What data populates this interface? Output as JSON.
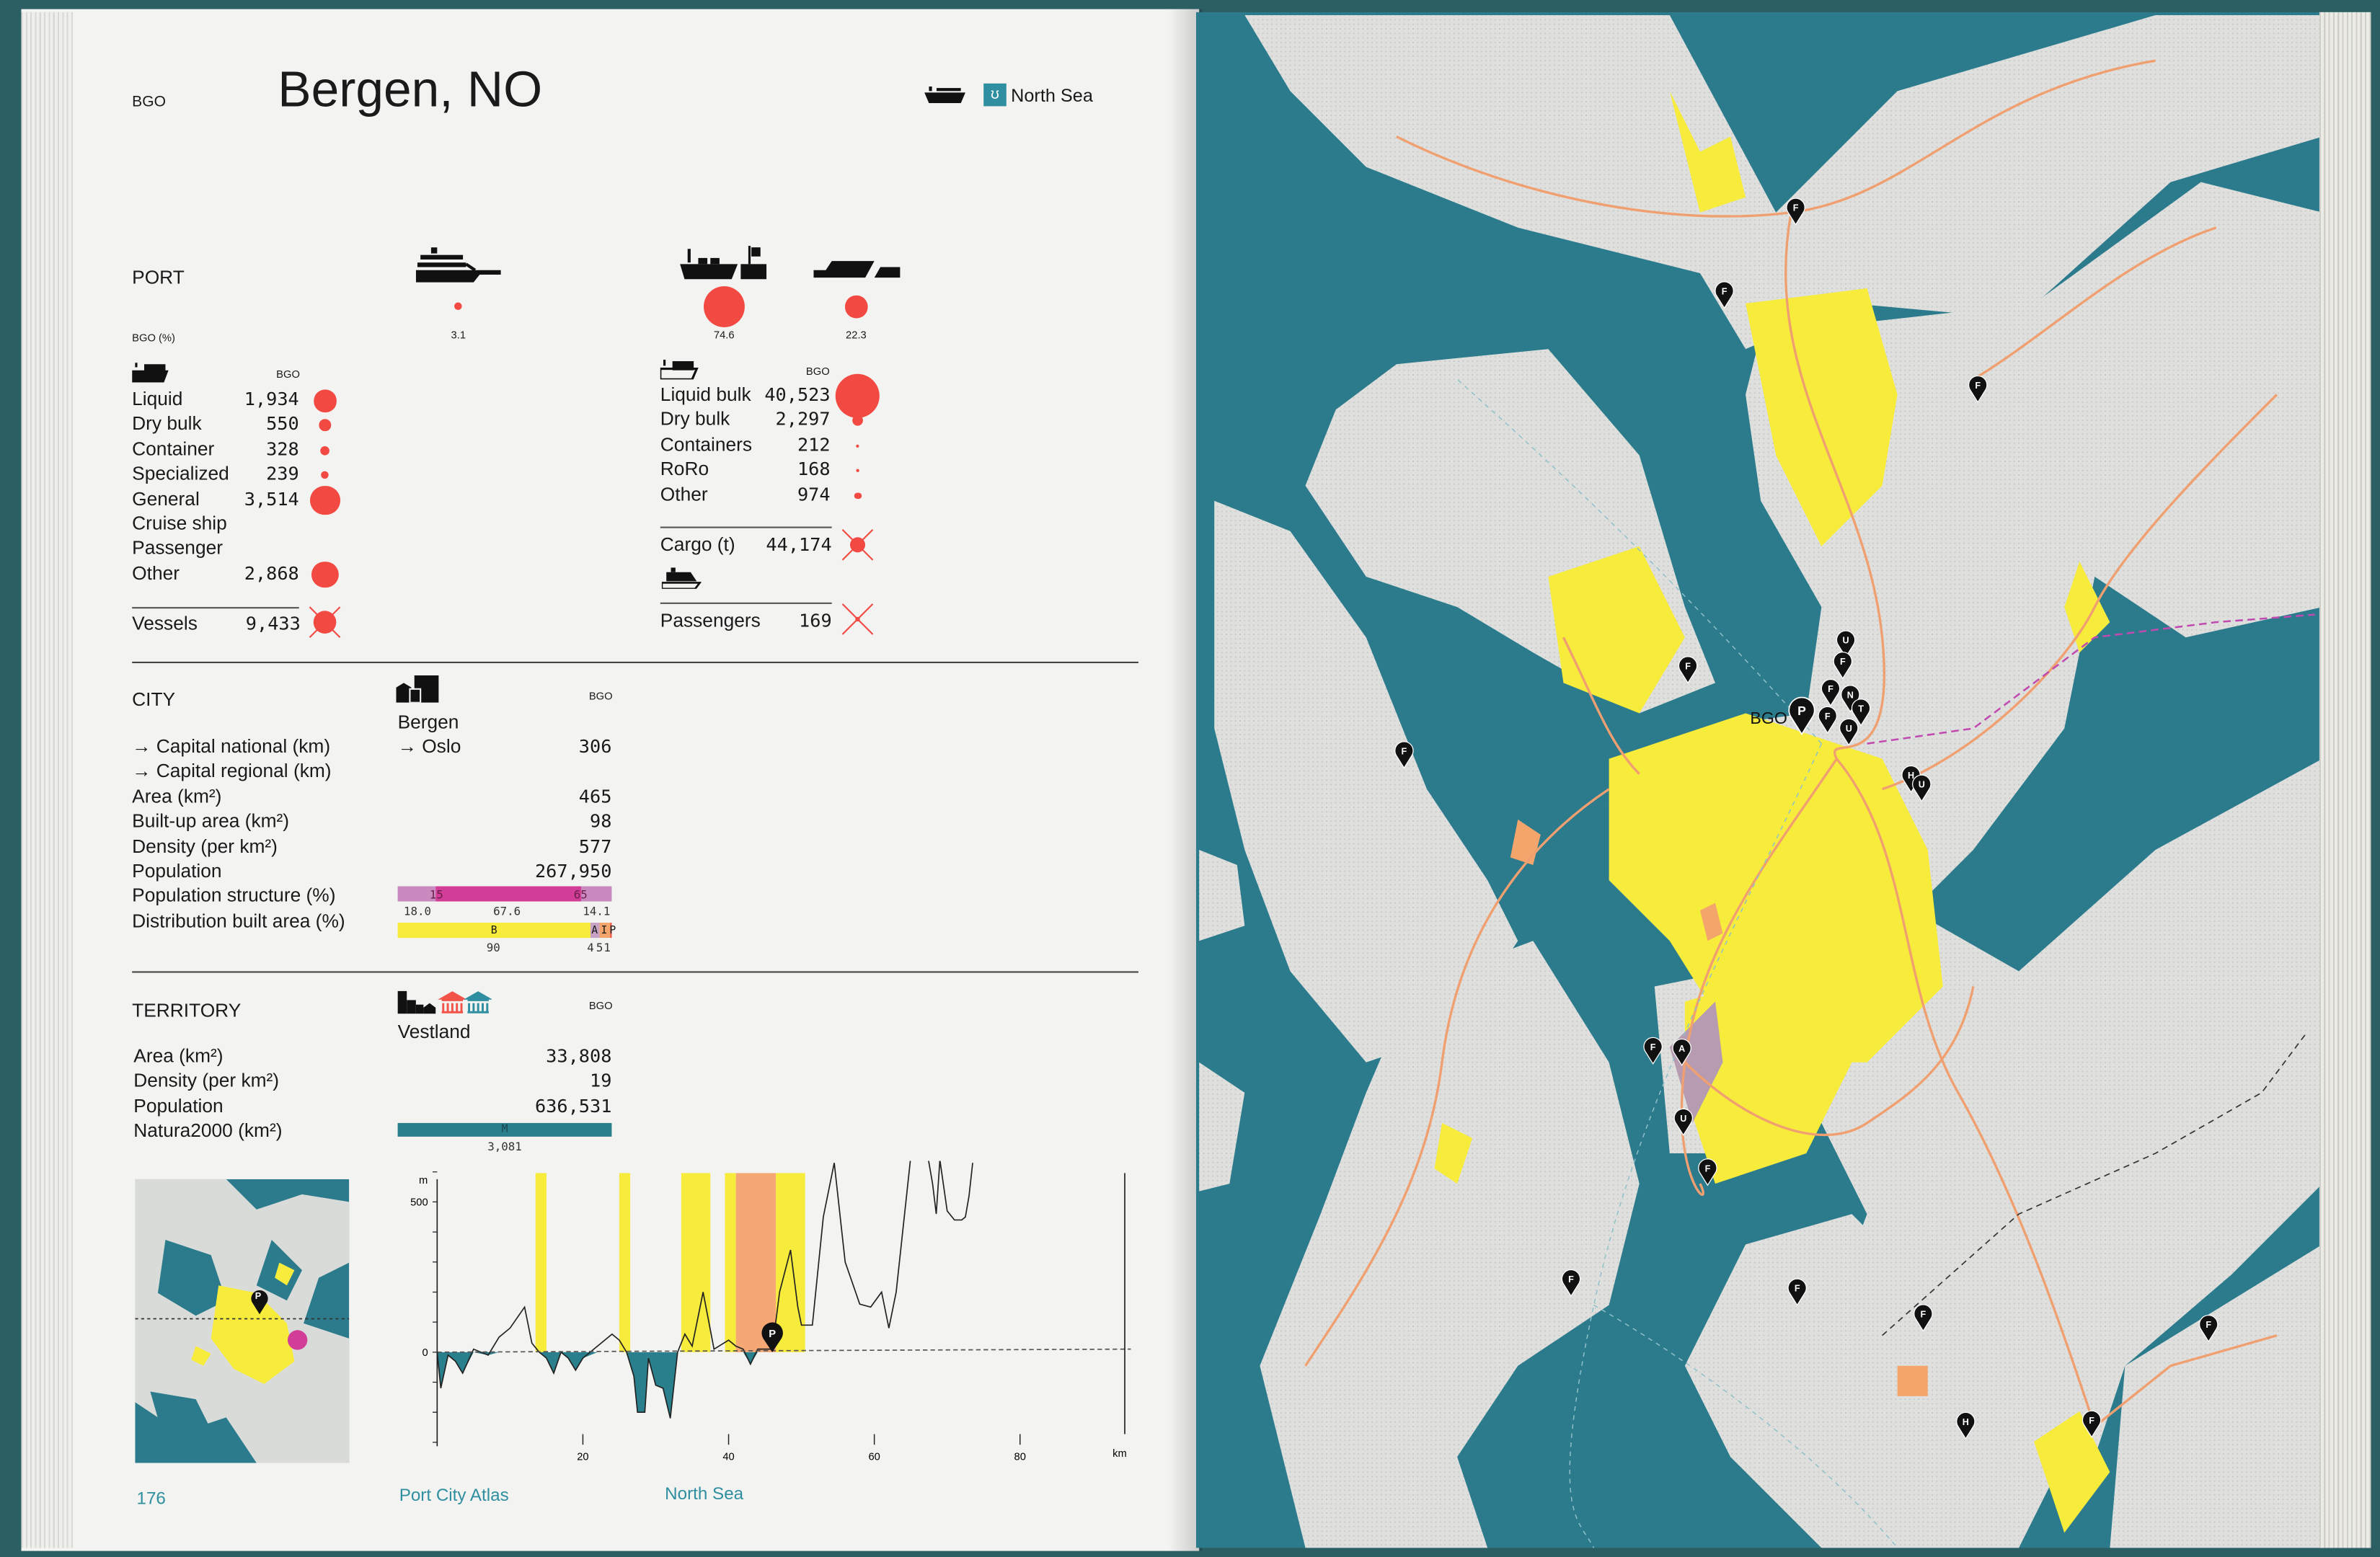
{
  "header": {
    "code": "BGO",
    "title": "Bergen, NO",
    "sea_label": "North Sea",
    "ship_icon": "cargo-ship-icon",
    "sea_icon": "sea-badge-icon"
  },
  "port": {
    "title": "PORT",
    "share_label": "BGO (%)",
    "shares": [
      {
        "icon": "cruise-ship-icon",
        "value": "3.1"
      },
      {
        "icon": "container-ship-icon",
        "value": "74.6"
      },
      {
        "icon": "roro-ship-icon",
        "value": "22.3"
      }
    ],
    "vessels": {
      "col": "BGO",
      "rows": [
        {
          "label": "Liquid",
          "value": "1,934"
        },
        {
          "label": "Dry bulk",
          "value": "550"
        },
        {
          "label": "Container",
          "value": "328"
        },
        {
          "label": "Specialized",
          "value": "239"
        },
        {
          "label": "General",
          "value": "3,514"
        },
        {
          "label": "Cruise ship",
          "value": ""
        },
        {
          "label": "Passenger",
          "value": ""
        },
        {
          "label": "Other",
          "value": "2,868"
        }
      ],
      "total_label": "Vessels",
      "total_value": "9,433"
    },
    "cargo": {
      "col": "BGO",
      "rows": [
        {
          "label": "Liquid bulk",
          "value": "40,523"
        },
        {
          "label": "Dry bulk",
          "value": "2,297"
        },
        {
          "label": "Containers",
          "value": "212"
        },
        {
          "label": "RoRo",
          "value": "168"
        },
        {
          "label": "Other",
          "value": "974"
        }
      ],
      "total_label": "Cargo (t)",
      "total_value": "44,174",
      "passengers_label": "Passengers",
      "passengers_value": "169"
    }
  },
  "city": {
    "title": "CITY",
    "col": "BGO",
    "name": "Bergen",
    "capital": "→ Oslo",
    "rows": [
      {
        "label": "→ Capital national (km)",
        "value": "306"
      },
      {
        "label": "→ Capital regional (km)",
        "value": ""
      },
      {
        "label": "Area (km²)",
        "value": "465"
      },
      {
        "label": "Built-up area (km²)",
        "value": "98"
      },
      {
        "label": "Density (per km²)",
        "value": "577"
      },
      {
        "label": "Population",
        "value": "267,950"
      },
      {
        "label": "Population structure (%)",
        "value": ""
      },
      {
        "label": "Distribution built area (%)",
        "value": ""
      }
    ],
    "pop_structure": {
      "segments": [
        {
          "value": 18.0,
          "color": "#c98bbf"
        },
        {
          "value": 67.6,
          "color": "#d23d98"
        },
        {
          "value": 14.1,
          "color": "#c98bbf"
        }
      ],
      "marks": [
        "15",
        "65"
      ],
      "labels": [
        "18.0",
        "67.6",
        "14.1"
      ]
    },
    "built_area": {
      "segments": [
        {
          "key": "B",
          "value": 90,
          "color": "#f7eb3c"
        },
        {
          "key": "A",
          "value": 4,
          "color": "#c7a2c4"
        },
        {
          "key": "I",
          "value": 5,
          "color": "#f4a56c"
        },
        {
          "key": "P",
          "value": 1,
          "color": "#f04a3a"
        }
      ],
      "labels": [
        "90",
        "4",
        "5",
        "1"
      ]
    }
  },
  "territory": {
    "title": "TERRITORY",
    "col": "BGO",
    "name": "Vestland",
    "rows": [
      {
        "label": "Area (km²)",
        "value": "33,808"
      },
      {
        "label": "Density (per km²)",
        "value": "19"
      },
      {
        "label": "Population",
        "value": "636,531"
      },
      {
        "label": "Natura2000 (km²)",
        "value": ""
      }
    ],
    "natura": {
      "key": "M",
      "value": "3,081",
      "color": "#2a7f8c"
    }
  },
  "chart_data": {
    "type": "area",
    "xlabel": "km",
    "ylabel": "m",
    "xlim": [
      0,
      100
    ],
    "ylim": [
      -550,
      1100
    ],
    "xticks": [
      20,
      40,
      60,
      80
    ],
    "yticks": [
      1000,
      500,
      0,
      -500
    ],
    "grid": false,
    "elevation": {
      "x": [
        0,
        0.5,
        1.5,
        2.5,
        3.5,
        5,
        7,
        8.5,
        10,
        12,
        13,
        14,
        15,
        16,
        17,
        18,
        19,
        20,
        22,
        24,
        25,
        26,
        27,
        27.5,
        28.5,
        29,
        30,
        31,
        32,
        33,
        34,
        35,
        36.5,
        38,
        40,
        41,
        42,
        43,
        44,
        46,
        47,
        48.5,
        49.5,
        50,
        51.5,
        53,
        54.5,
        56,
        58,
        59.5,
        61,
        62,
        63,
        65,
        66,
        67,
        68,
        68.5,
        69,
        70,
        71,
        72,
        72.5,
        73,
        73.5
      ],
      "y": [
        0,
        -120,
        -10,
        -30,
        -70,
        10,
        -10,
        50,
        80,
        150,
        30,
        0,
        -20,
        -70,
        0,
        -20,
        -60,
        -20,
        20,
        60,
        40,
        0,
        -80,
        -200,
        -200,
        -20,
        -110,
        -120,
        -220,
        0,
        60,
        20,
        200,
        10,
        40,
        20,
        10,
        -40,
        10,
        10,
        200,
        340,
        150,
        90,
        90,
        450,
        630,
        300,
        160,
        150,
        200,
        80,
        200,
        650,
        740,
        700,
        560,
        460,
        640,
        470,
        440,
        440,
        450,
        520,
        630
      ]
    },
    "landuse_bands": [
      {
        "from": 13.5,
        "to": 15,
        "type": "built"
      },
      {
        "from": 25,
        "to": 26.5,
        "type": "built"
      },
      {
        "from": 33.5,
        "to": 37.5,
        "type": "built"
      },
      {
        "from": 39.5,
        "to": 41,
        "type": "built"
      },
      {
        "from": 41,
        "to": 46.5,
        "type": "industrial"
      },
      {
        "from": 46.5,
        "to": 50.5,
        "type": "built"
      }
    ],
    "port_marker": {
      "x": 46,
      "label": "P"
    },
    "colors": {
      "built": "#f7eb3c",
      "industrial": "#f5a774",
      "below_sea": "#2a7f8c"
    }
  },
  "map": {
    "port_code": "BGO",
    "pins": [
      "F",
      "F",
      "F",
      "F",
      "F",
      "P",
      "U",
      "F",
      "F",
      "N",
      "T",
      "F",
      "U",
      "H",
      "U",
      "F",
      "A",
      "U",
      "F",
      "F",
      "F",
      "F",
      "F",
      "H",
      "F"
    ]
  },
  "inset": {
    "pin": "P"
  },
  "footer": {
    "page": "176",
    "book": "Port City Atlas",
    "section": "North Sea"
  },
  "colors": {
    "sea": "#2b7b8c",
    "land": "#d9dbd8",
    "built": "#f7eb3c",
    "road": "#f0a070",
    "accent_red": "#f24a42",
    "text_teal": "#2f8fa0"
  }
}
